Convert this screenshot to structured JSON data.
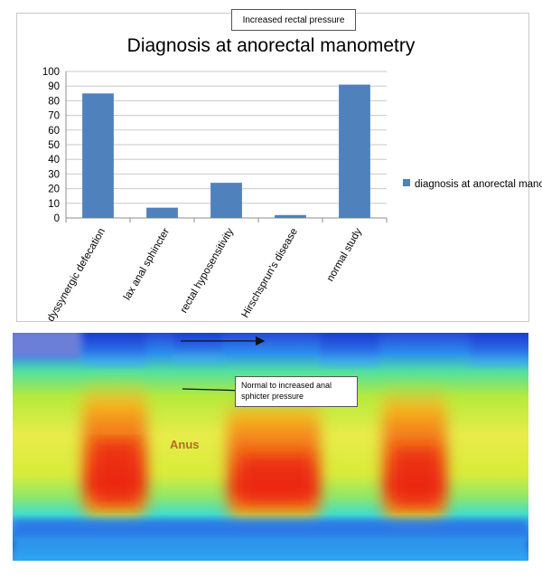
{
  "callouts": {
    "top": "Increased rectal pressure",
    "middle": "Normal to increased anal sphicter pressure",
    "anus": "Anus"
  },
  "chart_data": {
    "type": "bar",
    "title": "Diagnosis at anorectal manometry",
    "categories": [
      "dyssynergic defecation",
      "lax anal sphincter",
      "rectal hyposensitivity",
      "Hirschsprun's disease",
      "normal study"
    ],
    "series": [
      {
        "name": "diagnosis at anorectal manometry",
        "values": [
          85,
          7,
          24,
          2,
          91
        ],
        "color": "#4f81bd"
      }
    ],
    "yticks": [
      0,
      10,
      20,
      30,
      40,
      50,
      60,
      70,
      80,
      90,
      100
    ],
    "ylim": [
      0,
      100
    ],
    "grid": true,
    "legend_position": "right",
    "xlabel": "",
    "ylabel": ""
  },
  "heatmap": {
    "type": "pressure topography",
    "palette": [
      "#1e3fd0",
      "#1f8ff0",
      "#2ee0e6",
      "#6ee86a",
      "#d9ec2e",
      "#f6b320",
      "#ee3a12"
    ]
  }
}
